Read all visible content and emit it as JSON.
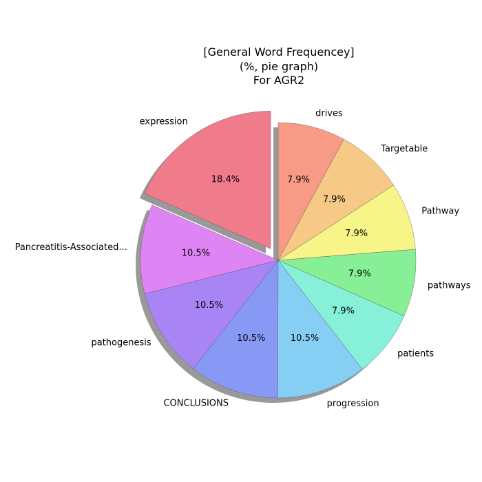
{
  "chart_data": {
    "type": "pie",
    "title": [
      "[General Word Frequencey]",
      "(%, pie graph)",
      "For AGR2"
    ],
    "labels": [
      "expression",
      "Pancreatitis-Associated...",
      "pathogenesis",
      "CONCLUSIONS",
      "progression",
      "patients",
      "pathways",
      "Pathway",
      "Targetable",
      "drives"
    ],
    "values": [
      18.4,
      10.5,
      10.5,
      10.5,
      10.5,
      7.9,
      7.9,
      7.9,
      7.9,
      7.9
    ],
    "value_labels": [
      "18.4%",
      "10.5%",
      "10.5%",
      "10.5%",
      "10.5%",
      "7.9%",
      "7.9%",
      "7.9%",
      "7.9%",
      "7.9%"
    ],
    "colors": [
      "#f07b8b",
      "#df84f5",
      "#a984f5",
      "#8799f5",
      "#87cef5",
      "#87f0d9",
      "#87f096",
      "#f7f587",
      "#f7c987",
      "#f79b87"
    ],
    "exploded": [
      true,
      false,
      false,
      false,
      false,
      false,
      false,
      false,
      false,
      false
    ],
    "start_angle_deg": 90,
    "direction": "counterclockwise",
    "shadow": true
  }
}
